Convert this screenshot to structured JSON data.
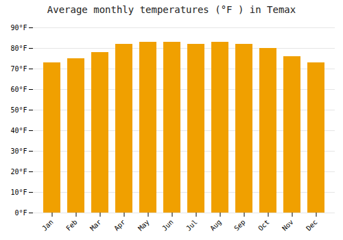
{
  "chart_data": {
    "type": "bar",
    "title": "Average monthly temperatures (°F ) in Temax",
    "categories": [
      "Jan",
      "Feb",
      "Mar",
      "Apr",
      "May",
      "Jun",
      "Jul",
      "Aug",
      "Sep",
      "Oct",
      "Nov",
      "Dec"
    ],
    "values": [
      73,
      75,
      78,
      82,
      83,
      83,
      82,
      83,
      82,
      80,
      76,
      73
    ],
    "color": "#F0A000",
    "ylim": [
      0,
      90
    ],
    "yticks": [
      {
        "value": 0,
        "label": "0°F"
      },
      {
        "value": 10,
        "label": "10°F"
      },
      {
        "value": 20,
        "label": "20°F"
      },
      {
        "value": 30,
        "label": "30°F"
      },
      {
        "value": 40,
        "label": "40°F"
      },
      {
        "value": 50,
        "label": "50°F"
      },
      {
        "value": 60,
        "label": "60°F"
      },
      {
        "value": 70,
        "label": "70°F"
      },
      {
        "value": 80,
        "label": "80°F"
      },
      {
        "value": 90,
        "label": "90°F"
      }
    ],
    "grid": true
  }
}
